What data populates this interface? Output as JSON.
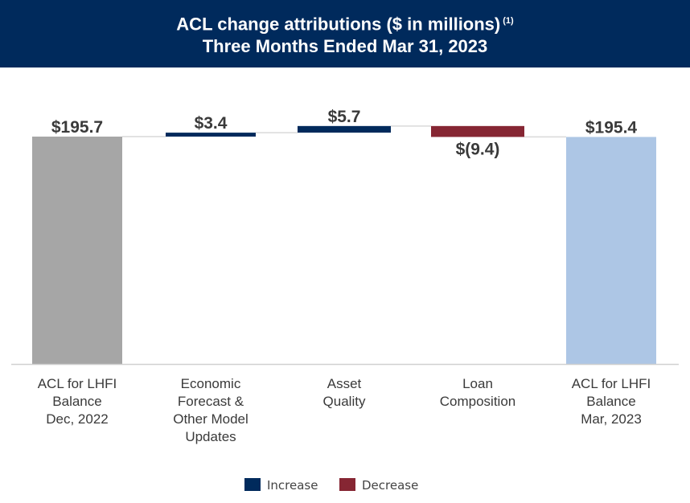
{
  "header": {
    "title": "ACL change attributions ($ in millions)",
    "footnote": "(1)",
    "subtitle": "Three Months Ended Mar 31, 2023"
  },
  "chart_data": {
    "type": "waterfall",
    "title": "ACL change attributions ($ in millions)",
    "subtitle": "Three Months Ended Mar 31, 2023",
    "categories": [
      "ACL for LHFI\nBalance\nDec, 2022",
      "Economic\nForecast &\nOther Model\nUpdates",
      "Asset\nQuality",
      "Loan\nComposition",
      "ACL for LHFI\nBalance\nMar, 2023"
    ],
    "values": [
      195.7,
      3.4,
      5.7,
      -9.4,
      195.4
    ],
    "kinds": [
      "total",
      "increase",
      "increase",
      "decrease",
      "total"
    ],
    "data_labels": [
      "$195.7",
      "$3.4",
      "$5.7",
      "$(9.4)",
      "$195.4"
    ],
    "colors": {
      "start_total": "#a6a6a6",
      "end_total": "#adc6e5",
      "increase": "#002a5c",
      "decrease": "#862633",
      "connector": "#d9d9d9",
      "baseline": "#d0d0d0"
    },
    "legend": [
      {
        "label": "Increase",
        "color": "#002a5c"
      },
      {
        "label": "Decrease",
        "color": "#862633"
      }
    ]
  }
}
